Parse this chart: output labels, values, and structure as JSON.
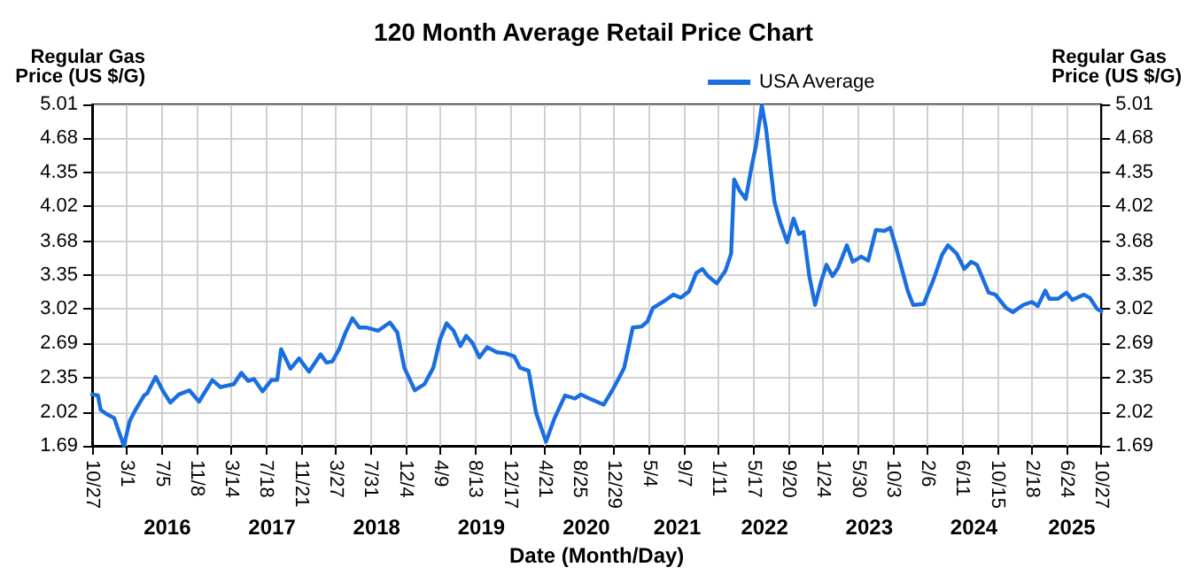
{
  "chart_data": {
    "type": "line",
    "title": "120 Month Average Retail Price Chart",
    "xlabel": "Date (Month/Day)",
    "ylabel": "Regular Gas\nPrice (US $/G)",
    "y2label": "Regular Gas\nPrice (US $/G)",
    "x": [
      "2015-10-27",
      "2015-11-17",
      "2015-11-27",
      "2015-12-18",
      "2016-01-15",
      "2016-01-29",
      "2016-02-19",
      "2016-03-11",
      "2016-04-01",
      "2016-05-02",
      "2016-05-13",
      "2016-06-13",
      "2016-07-08",
      "2016-08-05",
      "2016-09-05",
      "2016-10-13",
      "2016-11-17",
      "2017-01-04",
      "2017-02-03",
      "2017-03-23",
      "2017-04-19",
      "2017-05-14",
      "2017-06-04",
      "2017-07-05",
      "2017-08-06",
      "2017-08-27",
      "2017-09-10",
      "2017-10-14",
      "2017-11-14",
      "2017-12-20",
      "2018-01-31",
      "2018-02-21",
      "2018-03-14",
      "2018-04-08",
      "2018-05-01",
      "2018-05-26",
      "2018-06-20",
      "2018-07-17",
      "2018-08-28",
      "2018-10-09",
      "2018-11-05",
      "2018-11-30",
      "2019-01-07",
      "2019-02-11",
      "2019-03-15",
      "2019-04-09",
      "2019-05-02",
      "2019-05-27",
      "2019-06-21",
      "2019-07-12",
      "2019-08-04",
      "2019-08-29",
      "2019-09-26",
      "2019-10-31",
      "2019-12-01",
      "2020-01-02",
      "2020-01-23",
      "2020-02-23",
      "2020-03-21",
      "2020-04-26",
      "2020-05-27",
      "2020-07-04",
      "2020-08-09",
      "2020-08-30",
      "2020-09-30",
      "2020-11-21",
      "2020-12-22",
      "2021-01-13",
      "2021-02-03",
      "2021-03-06",
      "2021-04-07",
      "2021-04-28",
      "2021-05-18",
      "2021-06-29",
      "2021-07-31",
      "2021-08-27",
      "2021-09-25",
      "2021-10-22",
      "2021-11-13",
      "2021-12-03",
      "2022-01-04",
      "2022-02-04",
      "2022-02-25",
      "2022-03-08",
      "2022-03-28",
      "2022-04-19",
      "2022-05-09",
      "2022-05-26",
      "2022-06-16",
      "2022-07-01",
      "2022-08-01",
      "2022-08-22",
      "2022-09-16",
      "2022-10-09",
      "2022-10-28",
      "2022-11-14",
      "2022-12-05",
      "2022-12-26",
      "2023-01-16",
      "2023-02-05",
      "2023-02-27",
      "2023-03-19",
      "2023-04-20",
      "2023-05-11",
      "2023-06-11",
      "2023-07-06",
      "2023-08-03",
      "2023-09-03",
      "2023-09-24",
      "2023-10-15",
      "2023-11-26",
      "2023-12-16",
      "2024-01-23",
      "2024-02-28",
      "2024-03-30",
      "2024-04-20",
      "2024-05-21",
      "2024-06-18",
      "2024-07-13",
      "2024-08-03",
      "2024-09-14",
      "2024-10-09",
      "2024-11-16",
      "2024-12-11",
      "2025-01-17",
      "2025-02-18",
      "2025-03-11",
      "2025-04-07",
      "2025-04-22",
      "2025-05-23",
      "2025-06-23",
      "2025-07-14",
      "2025-08-25",
      "2025-09-15",
      "2025-10-12",
      "2025-10-27"
    ],
    "series": [
      {
        "name": "USA Average",
        "color": "#1a6fe0",
        "values": [
          2.19,
          2.18,
          2.04,
          2.0,
          1.96,
          1.85,
          1.69,
          1.93,
          2.04,
          2.18,
          2.2,
          2.36,
          2.23,
          2.11,
          2.19,
          2.23,
          2.12,
          2.33,
          2.26,
          2.29,
          2.4,
          2.32,
          2.34,
          2.22,
          2.33,
          2.33,
          2.63,
          2.44,
          2.54,
          2.41,
          2.58,
          2.5,
          2.51,
          2.63,
          2.79,
          2.93,
          2.84,
          2.84,
          2.81,
          2.89,
          2.79,
          2.45,
          2.23,
          2.29,
          2.45,
          2.73,
          2.88,
          2.81,
          2.66,
          2.76,
          2.69,
          2.55,
          2.65,
          2.6,
          2.59,
          2.56,
          2.45,
          2.42,
          2.01,
          1.73,
          1.96,
          2.18,
          2.15,
          2.19,
          2.15,
          2.09,
          2.23,
          2.34,
          2.45,
          2.84,
          2.85,
          2.9,
          3.03,
          3.1,
          3.16,
          3.13,
          3.19,
          3.37,
          3.41,
          3.34,
          3.27,
          3.39,
          3.56,
          4.28,
          4.17,
          4.09,
          4.39,
          4.61,
          5.0,
          4.78,
          4.06,
          3.86,
          3.67,
          3.9,
          3.75,
          3.77,
          3.34,
          3.06,
          3.28,
          3.45,
          3.34,
          3.42,
          3.64,
          3.48,
          3.53,
          3.49,
          3.79,
          3.78,
          3.81,
          3.62,
          3.2,
          3.06,
          3.07,
          3.31,
          3.55,
          3.64,
          3.56,
          3.41,
          3.48,
          3.45,
          3.18,
          3.16,
          3.03,
          2.99,
          3.06,
          3.09,
          3.05,
          3.2,
          3.12,
          3.12,
          3.18,
          3.11,
          3.16,
          3.13,
          3.02,
          3.0
        ]
      }
    ],
    "xlim": [
      "2015-10-27",
      "2025-10-27"
    ],
    "xticks": [
      {
        "value": "2015-10-27",
        "label": "10/27"
      },
      {
        "value": "2016-03-01",
        "label": "3/1"
      },
      {
        "value": "2016-07-05",
        "label": "7/5"
      },
      {
        "value": "2016-11-08",
        "label": "11/8"
      },
      {
        "value": "2017-03-14",
        "label": "3/14"
      },
      {
        "value": "2017-07-18",
        "label": "7/18"
      },
      {
        "value": "2017-11-21",
        "label": "11/21"
      },
      {
        "value": "2018-03-27",
        "label": "3/27"
      },
      {
        "value": "2018-07-31",
        "label": "7/31"
      },
      {
        "value": "2018-12-04",
        "label": "12/4"
      },
      {
        "value": "2019-04-09",
        "label": "4/9"
      },
      {
        "value": "2019-08-13",
        "label": "8/13"
      },
      {
        "value": "2019-12-17",
        "label": "12/17"
      },
      {
        "value": "2020-04-21",
        "label": "4/21"
      },
      {
        "value": "2020-08-25",
        "label": "8/25"
      },
      {
        "value": "2020-12-29",
        "label": "12/29"
      },
      {
        "value": "2021-05-04",
        "label": "5/4"
      },
      {
        "value": "2021-09-07",
        "label": "9/7"
      },
      {
        "value": "2022-01-11",
        "label": "1/11"
      },
      {
        "value": "2022-05-17",
        "label": "5/17"
      },
      {
        "value": "2022-09-20",
        "label": "9/20"
      },
      {
        "value": "2023-01-24",
        "label": "1/24"
      },
      {
        "value": "2023-05-30",
        "label": "5/30"
      },
      {
        "value": "2023-10-03",
        "label": "10/3"
      },
      {
        "value": "2024-02-06",
        "label": "2/6"
      },
      {
        "value": "2024-06-11",
        "label": "6/11"
      },
      {
        "value": "2024-10-15",
        "label": "10/15"
      },
      {
        "value": "2025-02-18",
        "label": "2/18"
      },
      {
        "value": "2025-06-24",
        "label": "6/24"
      },
      {
        "value": "2025-10-27",
        "label": "10/27"
      }
    ],
    "x2lim": [
      "2015-10-27",
      "2025-10-27"
    ],
    "x2ticks": [
      {
        "value": "2016-07-25",
        "label": "2016"
      },
      {
        "value": "2017-08-08",
        "label": "2017"
      },
      {
        "value": "2018-08-22",
        "label": "2018"
      },
      {
        "value": "2019-09-05",
        "label": "2019"
      },
      {
        "value": "2020-09-19",
        "label": "2020"
      },
      {
        "value": "2021-08-14",
        "label": "2021"
      },
      {
        "value": "2022-06-26",
        "label": "2022"
      },
      {
        "value": "2023-07-10",
        "label": "2023"
      },
      {
        "value": "2024-07-23",
        "label": "2024"
      },
      {
        "value": "2025-07-12",
        "label": "2025"
      }
    ],
    "ylim": [
      1.69,
      5.01
    ],
    "yticks": [
      1.69,
      2.02,
      2.35,
      2.69,
      3.02,
      3.35,
      3.68,
      4.02,
      4.35,
      4.68,
      5.01
    ],
    "y2lim": [
      1.69,
      5.01
    ],
    "y2ticks": [
      1.69,
      2.02,
      2.35,
      2.69,
      3.02,
      3.35,
      3.68,
      4.02,
      4.35,
      4.68,
      5.01
    ],
    "grid": true,
    "legend": "top right",
    "marker": "none",
    "line_style": "solid"
  }
}
